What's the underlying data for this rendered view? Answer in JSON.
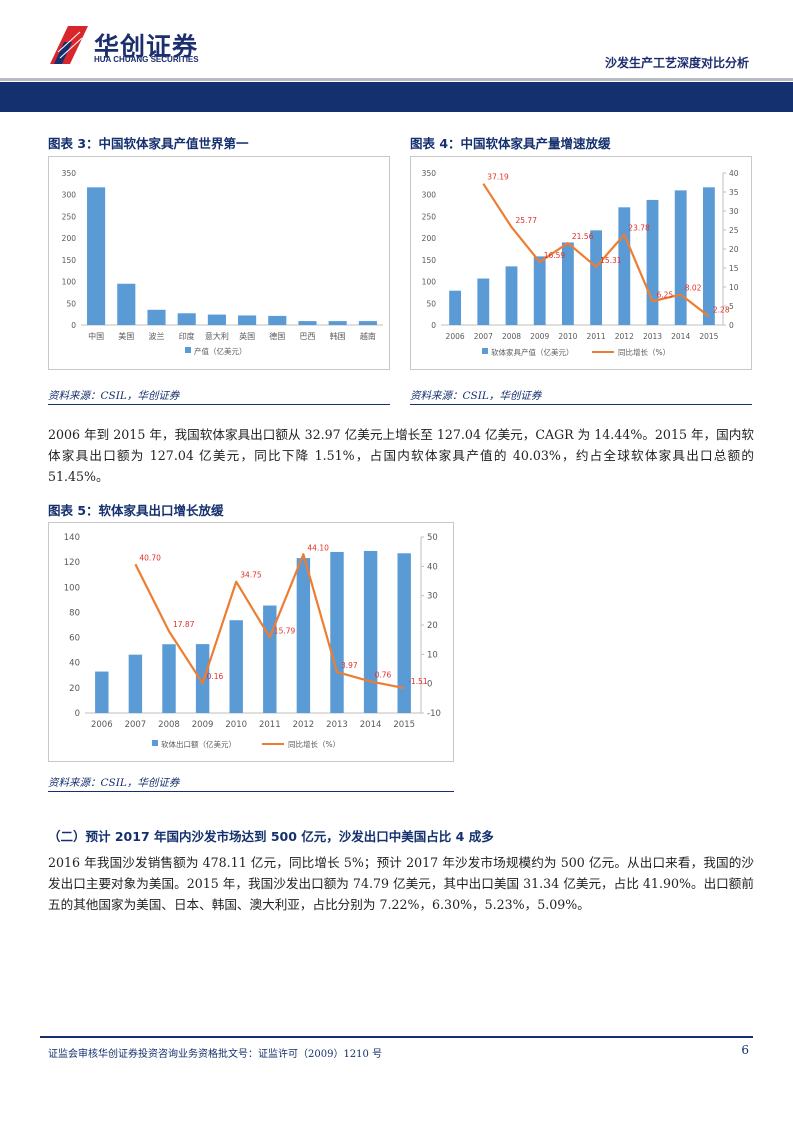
{
  "header": {
    "brand_cn": "华创证券",
    "brand_en": "HUA CHUANG SECURITIES",
    "report_title": "沙发生产工艺深度对比分析"
  },
  "figure3": {
    "title": "图表 3：中国软体家具产值世界第一",
    "source": "资料来源：CSIL，华创证券"
  },
  "figure4": {
    "title": "图表 4：中国软体家具产量增速放缓",
    "source": "资料来源：CSIL，华创证券"
  },
  "paragraph1": "2006 年到 2015 年，我国软体家具出口额从 32.97 亿美元上增长至 127.04 亿美元，CAGR 为 14.44%。2015 年，国内软体家具出口额为 127.04 亿美元，同比下降 1.51%，占国内软体家具产值的 40.03%，约占全球软体家具出口总额的 51.45%。",
  "figure5": {
    "title": "图表 5：软体家具出口增长放缓",
    "source": "资料来源：CSIL，华创证券"
  },
  "section2": {
    "heading": "（二）预计 2017 年国内沙发市场达到 500 亿元，沙发出口中美国占比 4 成多",
    "paragraph": "2016 年我国沙发销售额为 478.11 亿元，同比增长 5%；预计 2017 年沙发市场规模约为 500 亿元。从出口来看，我国的沙发出口主要对象为美国。2015 年，我国沙发出口额为 74.79 亿美元，其中出口美国 31.34 亿美元，占比 41.90%。出口额前五的其他国家为美国、日本、韩国、澳大利亚，占比分别为 7.22%，6.30%，5.23%，5.09%。"
  },
  "footer": {
    "text": "证监会审核华创证券投资咨询业务资格批文号：证监许可（2009）1210 号",
    "page": "6"
  },
  "chart_data": [
    {
      "type": "bar",
      "categories": [
        "中国",
        "美国",
        "波兰",
        "印度",
        "意大利",
        "英国",
        "德国",
        "巴西",
        "韩国",
        "越南"
      ],
      "series": [
        {
          "name": "产值（亿美元）",
          "values": [
            317,
            95,
            35,
            27,
            24,
            22,
            21,
            9,
            9,
            9
          ]
        }
      ],
      "ylim": [
        0,
        350
      ],
      "yticks": [
        "0",
        "50",
        "100",
        "150",
        "200",
        "250",
        "300",
        "350"
      ],
      "grid": false,
      "legend": "bottom",
      "bar_color": "#5b9bd5"
    },
    {
      "type": "bar",
      "categories": [
        "2006",
        "2007",
        "2008",
        "2009",
        "2010",
        "2011",
        "2012",
        "2013",
        "2014",
        "2015"
      ],
      "series": [
        {
          "name": "软体家具产值（亿美元）",
          "axis": "left",
          "values": [
            79,
            107,
            135,
            158,
            190,
            218,
            271,
            288,
            310,
            317
          ]
        },
        {
          "name": "同比增长（%）",
          "axis": "right",
          "type": "line",
          "values": [
            null,
            37.19,
            25.77,
            16.59,
            21.56,
            15.31,
            23.78,
            6.25,
            8.02,
            2.28
          ]
        }
      ],
      "data_labels": [
        "37.19",
        "25.77",
        "16.59",
        "21.56",
        "15.31",
        "23.78",
        "6.25",
        "8.02",
        "2.28"
      ],
      "ylim": [
        0,
        350
      ],
      "y2lim": [
        0,
        40
      ],
      "yticks": [
        "0",
        "50",
        "100",
        "150",
        "200",
        "250",
        "300",
        "350"
      ],
      "y2ticks": [
        "0",
        "5",
        "10",
        "15",
        "20",
        "25",
        "30",
        "35",
        "40"
      ],
      "legend": "bottom",
      "bar_color": "#5b9bd5",
      "line_color": "#ed7d31"
    },
    {
      "type": "bar",
      "categories": [
        "2006",
        "2007",
        "2008",
        "2009",
        "2010",
        "2011",
        "2012",
        "2013",
        "2014",
        "2015"
      ],
      "series": [
        {
          "name": "软体出口额（亿美元）",
          "axis": "left",
          "values": [
            32.97,
            46.4,
            54.7,
            54.8,
            73.8,
            85.5,
            123.2,
            128.1,
            128.9,
            127.04
          ]
        },
        {
          "name": "同比增长（%）",
          "axis": "right",
          "type": "line",
          "values": [
            null,
            40.7,
            17.87,
            0.16,
            34.75,
            15.79,
            44.1,
            3.97,
            0.76,
            -1.51
          ]
        }
      ],
      "data_labels": [
        "40.70",
        "17.87",
        "0.16",
        "34.75",
        "15.79",
        "44.10",
        "3.97",
        "0.76",
        "-1.51"
      ],
      "ylim": [
        0,
        140
      ],
      "y2lim": [
        -10,
        50
      ],
      "yticks": [
        "0",
        "20",
        "40",
        "60",
        "80",
        "100",
        "120",
        "140"
      ],
      "y2ticks": [
        "-10",
        "0",
        "10",
        "20",
        "30",
        "40",
        "50"
      ],
      "legend": "bottom",
      "bar_color": "#5b9bd5",
      "line_color": "#ed7d31"
    }
  ]
}
